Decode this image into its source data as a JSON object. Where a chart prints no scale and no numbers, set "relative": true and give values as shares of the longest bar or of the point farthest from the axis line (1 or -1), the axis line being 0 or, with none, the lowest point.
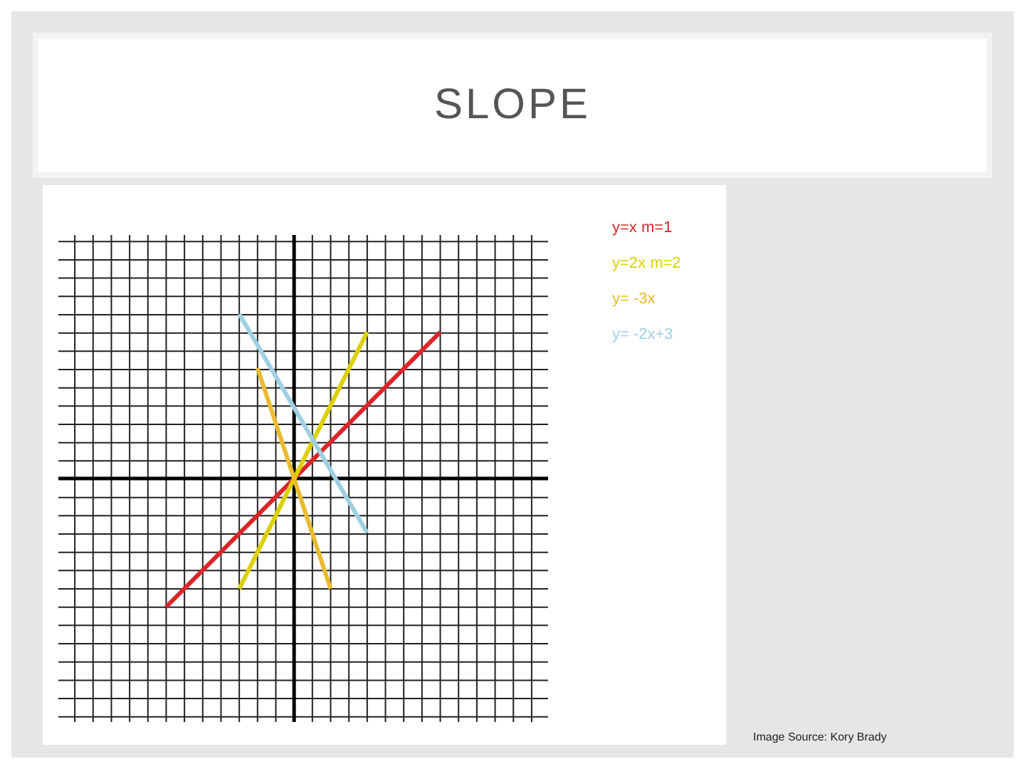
{
  "chart_data": {
    "type": "line",
    "title": "SLOPE",
    "relative": true,
    "grid": true,
    "categories": [
      null,
      null,
      null,
      null,
      null,
      null,
      null,
      null,
      null,
      null,
      null,
      null,
      null,
      null,
      null,
      null,
      null,
      null,
      null,
      null,
      null,
      null,
      null,
      null,
      null,
      null
    ],
    "series": [
      {
        "name": "y=x m=1",
        "color": "#d9262c",
        "values": [
          null,
          null,
          null,
          null,
          null,
          -0.78,
          null,
          null,
          null,
          null,
          null,
          null,
          null,
          null,
          null,
          null,
          null,
          null,
          null,
          null,
          0.89,
          null,
          null,
          null,
          null,
          null
        ]
      },
      {
        "name": "y=2x m=2",
        "color": "#dcd000",
        "values": [
          null,
          null,
          null,
          null,
          null,
          null,
          null,
          null,
          null,
          -0.67,
          null,
          null,
          null,
          null,
          null,
          null,
          0.89,
          null,
          null,
          null,
          null,
          null,
          null,
          null,
          null,
          null
        ]
      },
      {
        "name": "y= -3x",
        "color": "#eabb30",
        "values": [
          null,
          null,
          null,
          null,
          null,
          null,
          null,
          null,
          null,
          null,
          0.67,
          null,
          null,
          null,
          -0.67,
          null,
          null,
          null,
          null,
          null,
          null,
          null,
          null,
          null,
          null,
          null
        ]
      },
      {
        "name": "y= -2x+3",
        "color": "#9fd0e2",
        "values": [
          null,
          null,
          null,
          null,
          null,
          null,
          null,
          null,
          null,
          1,
          null,
          null,
          null,
          null,
          null,
          null,
          -0.33,
          null,
          null,
          null,
          null,
          null,
          null,
          null,
          null,
          null
        ]
      }
    ],
    "annotations": [
      "Image Source: Kory Brady"
    ]
  }
}
